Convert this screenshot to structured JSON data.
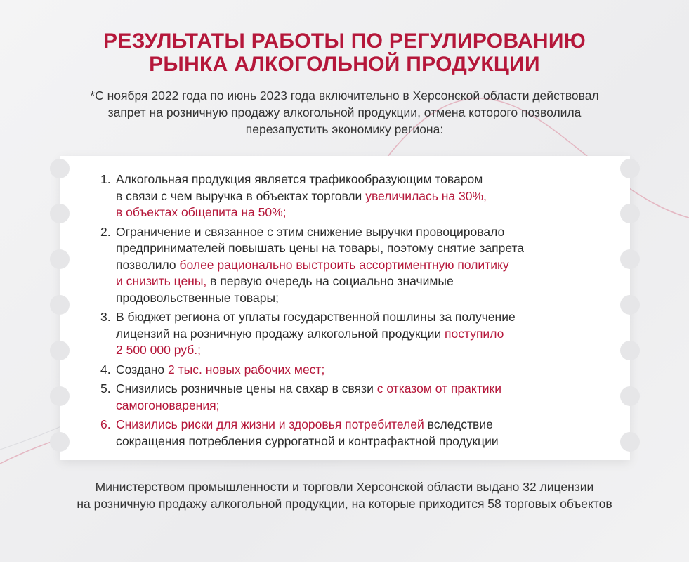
{
  "title": {
    "line1": "РЕЗУЛЬТАТЫ РАБОТЫ ПО РЕГУЛИРОВАНИЮ",
    "line2": "РЫНКА АЛКОГОЛЬНОЙ ПРОДУКЦИИ"
  },
  "subtitle": {
    "line1": "*С ноября 2022 года по июнь 2023 года включительно в Херсонской области действовал",
    "line2": "запрет на розничную продажу алкогольной продукции, отмена которого позволила",
    "line3": "перезапустить экономику региона:"
  },
  "colors": {
    "accent": "#b5173a",
    "text": "#2b2b2b"
  },
  "items": [
    {
      "num": "1.",
      "lines": [
        [
          {
            "t": "Алкогольная продукция является трафикообразующим товаром",
            "h": false
          }
        ],
        [
          {
            "t": "в связи с чем выручка в объектах торговли ",
            "h": false
          },
          {
            "t": "увеличилась на 30%,",
            "h": true
          }
        ],
        [
          {
            "t": "в объектах общепита на 50%;",
            "h": true
          }
        ]
      ]
    },
    {
      "num": "2.",
      "lines": [
        [
          {
            "t": "Ограничение и связанное с этим снижение выручки провоцировало",
            "h": false
          }
        ],
        [
          {
            "t": "предпринимателей повышать цены на товары, поэтому снятие запрета",
            "h": false
          }
        ],
        [
          {
            "t": "позволило ",
            "h": false
          },
          {
            "t": "более рационально выстроить ассортиментную политику",
            "h": true
          }
        ],
        [
          {
            "t": "и снизить цены,",
            "h": true
          },
          {
            "t": " в первую очередь на социально значимые",
            "h": false
          }
        ],
        [
          {
            "t": "продовольственные товары;",
            "h": false
          }
        ]
      ]
    },
    {
      "num": "3.",
      "lines": [
        [
          {
            "t": "В бюджет региона от уплаты государственной пошлины за получение",
            "h": false
          }
        ],
        [
          {
            "t": "лицензий на розничную продажу алкогольной продукции ",
            "h": false
          },
          {
            "t": "поступило",
            "h": true
          }
        ],
        [
          {
            "t": "2 500 000 руб.;",
            "h": true
          }
        ]
      ]
    },
    {
      "num": "4.",
      "lines": [
        [
          {
            "t": "Создано ",
            "h": false
          },
          {
            "t": "2 тыс. новых рабочих мест;",
            "h": true
          }
        ]
      ]
    },
    {
      "num": "5.",
      "lines": [
        [
          {
            "t": "Снизились розничные цены на сахар в связи ",
            "h": false
          },
          {
            "t": "с отказом от практики",
            "h": true
          }
        ],
        [
          {
            "t": "самогоноварения;",
            "h": true
          }
        ]
      ]
    },
    {
      "num": "6.",
      "num_highlight": true,
      "lines": [
        [
          {
            "t": "Снизились риски для жизни и здоровья потребителей",
            "h": true
          },
          {
            "t": " вследствие",
            "h": false
          }
        ],
        [
          {
            "t": "сокращения потребления суррогатной и контрафактной продукции",
            "h": false
          }
        ]
      ]
    }
  ],
  "footer": {
    "line1": "Министерством промышленности и торговли Херсонской области выдано 32 лицензии",
    "line2": "на розничную продажу алкогольной продукции, на которые приходится 58 торговых объектов"
  }
}
